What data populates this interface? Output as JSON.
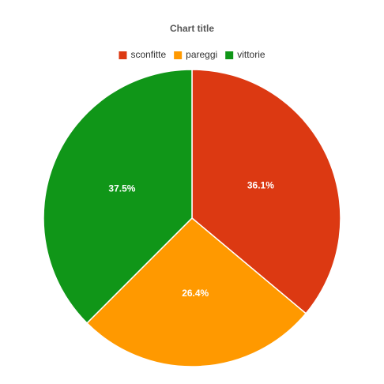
{
  "chart_data": {
    "type": "pie",
    "title": "Chart title",
    "categories": [
      "sconfitte",
      "pareggi",
      "vittorie"
    ],
    "values": [
      36.1,
      26.4,
      37.5
    ],
    "value_labels": [
      "36.1%",
      "26.4%",
      "37.5%"
    ],
    "colors": [
      "#dc3912",
      "#ff9900",
      "#109618"
    ],
    "legend": "top"
  }
}
